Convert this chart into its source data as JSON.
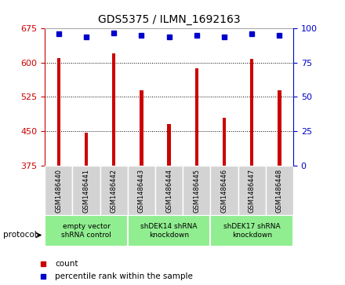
{
  "title": "GDS5375 / ILMN_1692163",
  "samples": [
    "GSM1486440",
    "GSM1486441",
    "GSM1486442",
    "GSM1486443",
    "GSM1486444",
    "GSM1486445",
    "GSM1486446",
    "GSM1486447",
    "GSM1486448"
  ],
  "counts": [
    610,
    447,
    621,
    540,
    465,
    588,
    480,
    609,
    540
  ],
  "percentiles": [
    96,
    94,
    97,
    95,
    94,
    95,
    94,
    96,
    95
  ],
  "ylim_left": [
    375,
    675
  ],
  "ylim_right": [
    0,
    100
  ],
  "yticks_left": [
    375,
    450,
    525,
    600,
    675
  ],
  "yticks_right": [
    0,
    25,
    50,
    75,
    100
  ],
  "bar_color": "#CC0000",
  "dot_color": "#0000CC",
  "bar_width": 0.12,
  "groups": [
    {
      "label": "empty vector\nshRNA control",
      "samples": [
        0,
        1,
        2
      ],
      "color": "#90EE90"
    },
    {
      "label": "shDEK14 shRNA\nknockdown",
      "samples": [
        3,
        4,
        5
      ],
      "color": "#90EE90"
    },
    {
      "label": "shDEK17 shRNA\nknockdown",
      "samples": [
        6,
        7,
        8
      ],
      "color": "#90EE90"
    }
  ],
  "legend_count_label": "count",
  "legend_percentile_label": "percentile rank within the sample",
  "protocol_label": "protocol",
  "left_axis_color": "#CC0000",
  "right_axis_color": "#0000CC",
  "background_color": "#ffffff",
  "plot_bg_color": "#ffffff",
  "sample_box_color": "#D3D3D3",
  "tick_fontsize": 8,
  "label_fontsize": 6.5
}
